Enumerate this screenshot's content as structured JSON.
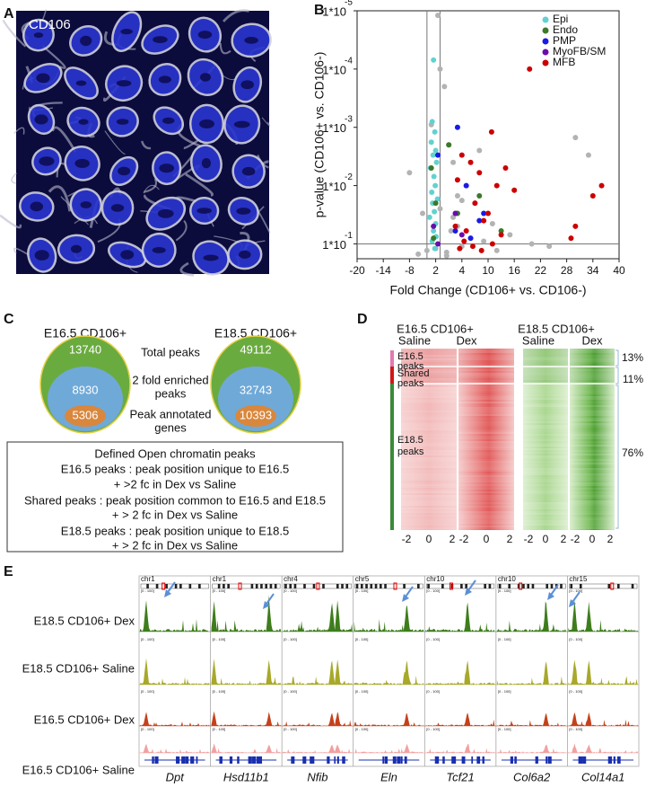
{
  "panel_labels": [
    "A",
    "B",
    "C",
    "D",
    "E"
  ],
  "panel_a": {
    "label": "CD106"
  },
  "chart_data": {
    "type": "scatter",
    "xlabel": "Fold Change (CD106+ vs. CD106-)",
    "ylabel": "p-value (CD106+ vs. CD106-)",
    "xlim": [
      -20,
      40
    ],
    "xticks": [
      -20,
      -14,
      -8,
      {
        "value": -2,
        "label": "2"
      },
      4,
      10,
      16,
      22,
      28,
      34,
      40
    ],
    "ylim": [
      0.18,
      1e-05
    ],
    "yscale": "log",
    "yticks": [
      {
        "value": 1e-05,
        "label": "1*10"
      },
      {
        "value": 0.0001,
        "label": "1*10"
      },
      {
        "value": 0.001,
        "label": "1*10"
      },
      {
        "value": 0.01,
        "label": "1*10"
      },
      {
        "value": 0.1,
        "label": "1*10"
      }
    ],
    "ytick_exponents": [
      "-5",
      "-4",
      "-3",
      "-2",
      "-1"
    ],
    "vlines": [
      -4,
      -1
    ],
    "hlines": [
      0.1
    ],
    "legend": "top-right",
    "series": [
      {
        "color": "#b3b3b3",
        "x": [
          -8,
          -5,
          -1,
          0,
          -3,
          1,
          2,
          5,
          7,
          30,
          33,
          3,
          6,
          -2,
          0.5,
          4,
          9,
          12,
          15,
          20,
          -6,
          1.5,
          -1,
          2,
          3,
          8,
          11,
          4,
          -4,
          0.5,
          -1.5,
          24
        ],
        "values": [
          0.006,
          0.03,
          0.0001,
          0.0002,
          0.0009,
          0.002,
          0.004,
          0.01,
          0.02,
          0.0015,
          0.003,
          0.05,
          0.08,
          0.12,
          0.14,
          0.11,
          0.09,
          0.13,
          0.07,
          0.1,
          0.15,
          0.06,
          0.025,
          0.035,
          0.015,
          0.0025,
          0.045,
          0.018,
          0.13,
          0.16,
          1.2e-05,
          0.11
        ]
      },
      {
        "name": "Epi",
        "color": "#62d2d0",
        "x": [
          -2.5,
          -2.8,
          -2.2,
          -3,
          -2,
          -2.6,
          -1.8,
          -3.2,
          -2.4,
          -2.1,
          -2.9,
          -1.6,
          -2.7,
          -2.3,
          -3.4,
          -2,
          -2.5,
          -1.9,
          -2.8,
          -2.2
        ],
        "values": [
          7e-05,
          0.0008,
          0.0012,
          0.0018,
          0.0025,
          0.003,
          0.004,
          0.005,
          0.007,
          0.01,
          0.013,
          0.017,
          0.02,
          0.028,
          0.035,
          0.045,
          0.06,
          0.075,
          0.09,
          0.12
        ]
      },
      {
        "name": "Endo",
        "color": "#3a7a2a",
        "x": [
          -3,
          -2,
          3,
          8,
          13,
          1,
          -2.5
        ],
        "values": [
          0.005,
          0.02,
          0.03,
          0.015,
          0.06,
          0.002,
          0.08
        ]
      },
      {
        "name": "PMP",
        "color": "#1a1ae6",
        "x": [
          3,
          5,
          8,
          2.5,
          6,
          9,
          -1.5
        ],
        "values": [
          0.001,
          0.01,
          0.04,
          0.06,
          0.08,
          0.03,
          0.003
        ]
      },
      {
        "name": "MyoFB/SM",
        "color": "#6a0dad",
        "x": [
          -2.5,
          -1.5,
          4,
          2.5
        ],
        "values": [
          0.05,
          0.1,
          0.07,
          0.03
        ]
      },
      {
        "name": "MFB",
        "color": "#cc0000",
        "x": [
          19.5,
          10.8,
          14,
          6,
          8,
          12,
          4,
          3,
          16,
          36,
          34,
          30,
          29,
          7,
          10,
          2.5,
          5,
          9,
          13,
          4.5,
          11,
          6.5,
          3.5,
          8.5
        ],
        "values": [
          0.0001,
          0.0012,
          0.005,
          0.004,
          0.006,
          0.01,
          0.003,
          0.008,
          0.012,
          0.01,
          0.015,
          0.05,
          0.08,
          0.02,
          0.03,
          0.05,
          0.06,
          0.04,
          0.07,
          0.09,
          0.1,
          0.11,
          0.12,
          0.13
        ]
      }
    ]
  },
  "panel_c": {
    "sets": [
      {
        "title": "E16.5 CD106+",
        "total": "13740",
        "enriched": "8930",
        "annotated": "5306"
      },
      {
        "title": "E18.5 CD106+",
        "total": "49112",
        "enriched": "32743",
        "annotated": "10393"
      }
    ],
    "row_labels": [
      [
        "Total peaks"
      ],
      [
        "2 fold enriched",
        "peaks"
      ],
      [
        "Peak annotated",
        "genes"
      ]
    ],
    "box_title": "Defined Open chromatin peaks",
    "box_lines": [
      "E16.5 peaks : peak position unique to E16.5",
      "+ >2 fc in Dex vs Saline",
      "Shared peaks : peak position common to E16.5 and E18.5",
      "+ > 2 fc in Dex vs Saline",
      "E18.5 peaks : peak position unique to E18.5",
      "+ > 2 fc in Dex vs Saline"
    ]
  },
  "panel_d": {
    "groups": [
      {
        "title": "E16.5 CD106+",
        "columns": [
          "Saline",
          "Dex"
        ]
      },
      {
        "title": "E18.5 CD106+",
        "columns": [
          "Saline",
          "Dex"
        ]
      }
    ],
    "row_groups": [
      {
        "label": [
          "E16.5",
          "peaks"
        ],
        "percent": "13%"
      },
      {
        "label": [
          "Shared",
          "peaks"
        ],
        "percent": "11%"
      },
      {
        "label": [
          "E18.5",
          "peaks"
        ],
        "percent": "76%"
      }
    ],
    "x_ticks": [
      "-2",
      "0",
      "2"
    ]
  },
  "panel_e": {
    "chromosomes": [
      "chr1",
      "chr1",
      "chr4",
      "chr5",
      "chr10",
      "chr10",
      "chr15"
    ],
    "tracks": [
      "E18.5 CD106+ Dex",
      "E18.5 CD106+ Saline",
      "E16.5 CD106+ Dex",
      "E16.5 CD106+ Saline"
    ],
    "genes": [
      "Dpt",
      "Hsd11b1",
      "Nfib",
      "Eln",
      "Tcf21",
      "Col6a2",
      "Col14a1"
    ],
    "range_label": "[0 - 100]"
  }
}
